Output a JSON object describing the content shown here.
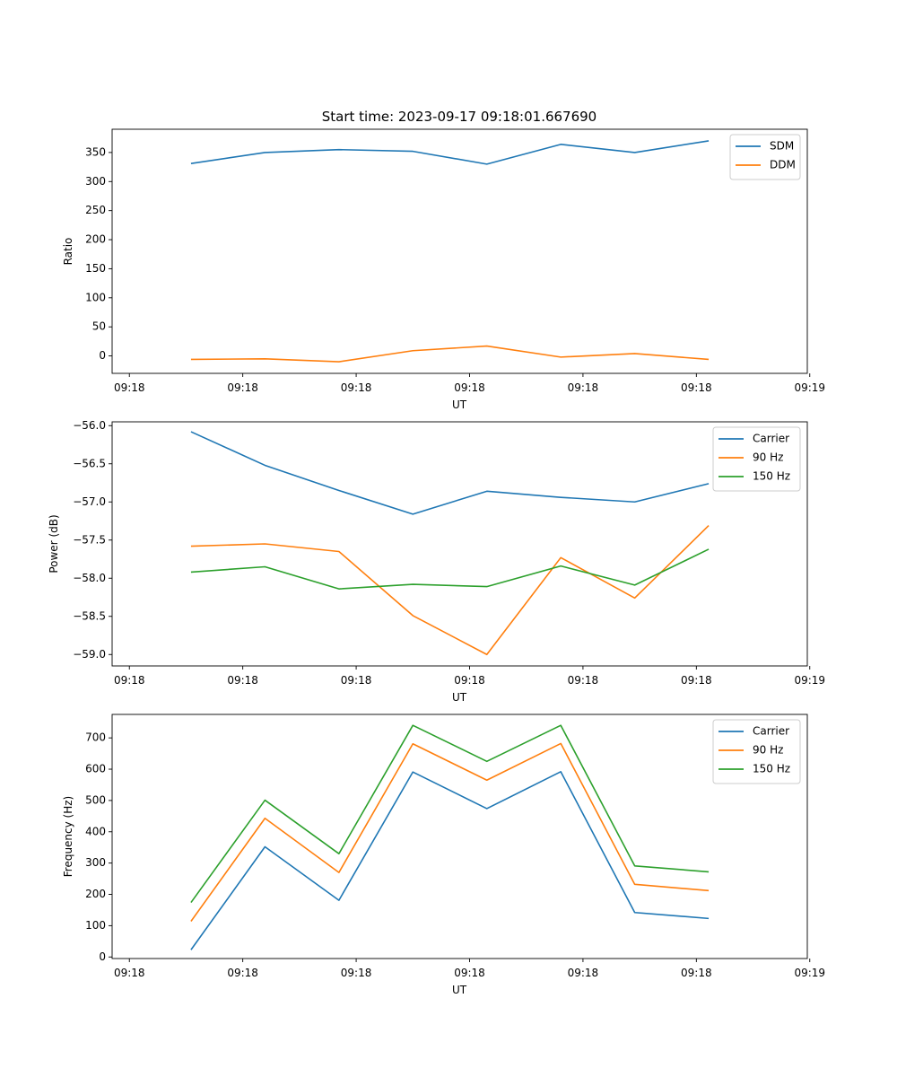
{
  "figure": {
    "title": "Start time: 2023-09-17 09:18:01.667690"
  },
  "chart_data": [
    {
      "type": "line",
      "xlabel": "UT",
      "ylabel": "Ratio",
      "x": [
        0.5,
        1.1,
        1.7,
        2.3,
        2.9,
        3.5,
        4.1,
        4.7
      ],
      "xlim": [
        -0.14,
        5.5
      ],
      "ylim": [
        -30,
        390
      ],
      "yticks": [
        0,
        50,
        100,
        150,
        200,
        250,
        300,
        350
      ],
      "xticks": [
        0,
        0.92,
        1.84,
        2.76,
        3.68,
        4.6,
        5.52
      ],
      "xticklabels": [
        "09:18",
        "09:18",
        "09:18",
        "09:18",
        "09:18",
        "09:18",
        "09:19"
      ],
      "legend_position": "top-right",
      "series": [
        {
          "name": "SDM",
          "color": "#1f77b4",
          "values": [
            331,
            350,
            355,
            352,
            330,
            364,
            350,
            370
          ]
        },
        {
          "name": "DDM",
          "color": "#ff7f0e",
          "values": [
            -6,
            -5,
            -10,
            9,
            17,
            -2,
            4,
            -6
          ]
        }
      ]
    },
    {
      "type": "line",
      "xlabel": "UT",
      "ylabel": "Power (dB)",
      "x": [
        0.5,
        1.1,
        1.7,
        2.3,
        2.9,
        3.5,
        4.1,
        4.7
      ],
      "xlim": [
        -0.14,
        5.5
      ],
      "ylim": [
        -59.15,
        -55.95
      ],
      "yticks": [
        -59.0,
        -58.5,
        -58.0,
        -57.5,
        -57.0,
        -56.5,
        -56.0
      ],
      "yticklabels": [
        "−59.0",
        "−58.5",
        "−58.0",
        "−57.5",
        "−57.0",
        "−56.5",
        "−56.0"
      ],
      "xticks": [
        0,
        0.92,
        1.84,
        2.76,
        3.68,
        4.6,
        5.52
      ],
      "xticklabels": [
        "09:18",
        "09:18",
        "09:18",
        "09:18",
        "09:18",
        "09:18",
        "09:19"
      ],
      "legend_position": "top-right",
      "series": [
        {
          "name": "Carrier",
          "color": "#1f77b4",
          "values": [
            -56.08,
            -56.52,
            -56.85,
            -57.16,
            -56.86,
            -56.94,
            -57.0,
            -56.76
          ]
        },
        {
          "name": "90 Hz",
          "color": "#ff7f0e",
          "values": [
            -57.58,
            -57.55,
            -57.65,
            -58.49,
            -59.0,
            -57.73,
            -58.26,
            -57.31
          ]
        },
        {
          "name": "150 Hz",
          "color": "#2ca02c",
          "values": [
            -57.92,
            -57.85,
            -58.14,
            -58.08,
            -58.11,
            -57.84,
            -58.09,
            -57.62
          ]
        }
      ]
    },
    {
      "type": "line",
      "xlabel": "UT",
      "ylabel": "Frequency (Hz)",
      "x": [
        0.5,
        1.1,
        1.7,
        2.3,
        2.9,
        3.5,
        4.1,
        4.7
      ],
      "xlim": [
        -0.14,
        5.5
      ],
      "ylim": [
        -5,
        775
      ],
      "yticks": [
        0,
        100,
        200,
        300,
        400,
        500,
        600,
        700
      ],
      "xticks": [
        0,
        0.92,
        1.84,
        2.76,
        3.68,
        4.6,
        5.52
      ],
      "xticklabels": [
        "09:18",
        "09:18",
        "09:18",
        "09:18",
        "09:18",
        "09:18",
        "09:19"
      ],
      "legend_position": "top-right",
      "series": [
        {
          "name": "Carrier",
          "color": "#1f77b4",
          "values": [
            23,
            352,
            181,
            591,
            474,
            592,
            142,
            123
          ]
        },
        {
          "name": "90 Hz",
          "color": "#ff7f0e",
          "values": [
            114,
            443,
            270,
            681,
            565,
            682,
            232,
            212
          ]
        },
        {
          "name": "150 Hz",
          "color": "#2ca02c",
          "values": [
            174,
            501,
            330,
            740,
            625,
            740,
            291,
            272
          ]
        }
      ]
    }
  ]
}
